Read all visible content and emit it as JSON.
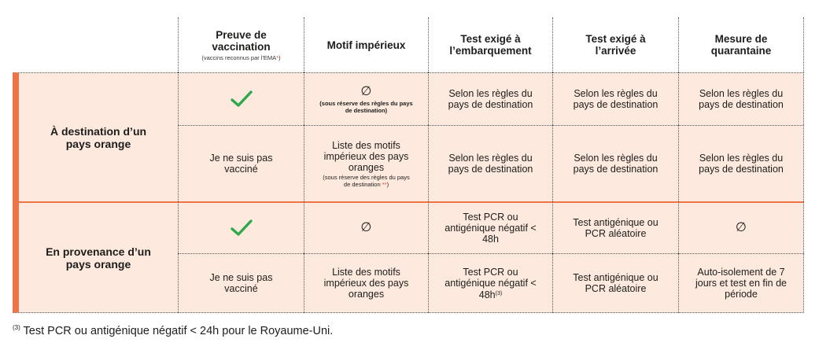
{
  "header": {
    "col_vaccination": "Preuve de vaccination",
    "col_vaccination_sub_prefix": "(vaccins reconnus par l'EMA",
    "col_vaccination_sub_star": "*",
    "col_vaccination_sub_suffix": ")",
    "col_motif": "Motif impérieux",
    "col_embarquement": "Test exigé à l’embarquement",
    "col_arrivee": "Test exigé à l’arrivée",
    "col_quarantaine": "Mesure de quarantaine"
  },
  "rows": {
    "dest_label": "À destination d’un pays orange",
    "prov_label": "En provenance d’un pays orange",
    "empty_symbol": "∅",
    "check_symbol": "✓",
    "not_vaccinated": "Je ne suis pas vacciné",
    "dest_vax_motif_note": "(sous réserve des règles du pays de destination)",
    "rules_dest": "Selon les règles du pays de destination",
    "dest_unvax_motif_main": "Liste des motifs impérieux des pays oranges",
    "dest_unvax_motif_note_prefix": "(sous réserve des règles du pays de destination ",
    "dest_unvax_motif_note_stars": "**",
    "dest_unvax_motif_note_suffix": ")",
    "prov_vax_embark": "Test PCR ou antigénique négatif < 48h",
    "prov_arrival": "Test antigénique ou PCR aléatoire",
    "prov_unvax_motif": "Liste des motifs impérieux des pays oranges",
    "prov_unvax_embark": "Test PCR ou antigénique négatif < 48h",
    "prov_unvax_embark_sup": "(3)",
    "prov_unvax_quarantine": "Auto-isolement de 7 jours et test en fin de période"
  },
  "footnote": {
    "marker": "(3)",
    "text": " Test PCR ou antigénique négatif < 24h pour le Royaume-Uni."
  },
  "colors": {
    "accent_orange": "#ec7446",
    "row_background": "#fde9dd",
    "check_green": "#2ea84c",
    "note_red": "#e5452a"
  }
}
